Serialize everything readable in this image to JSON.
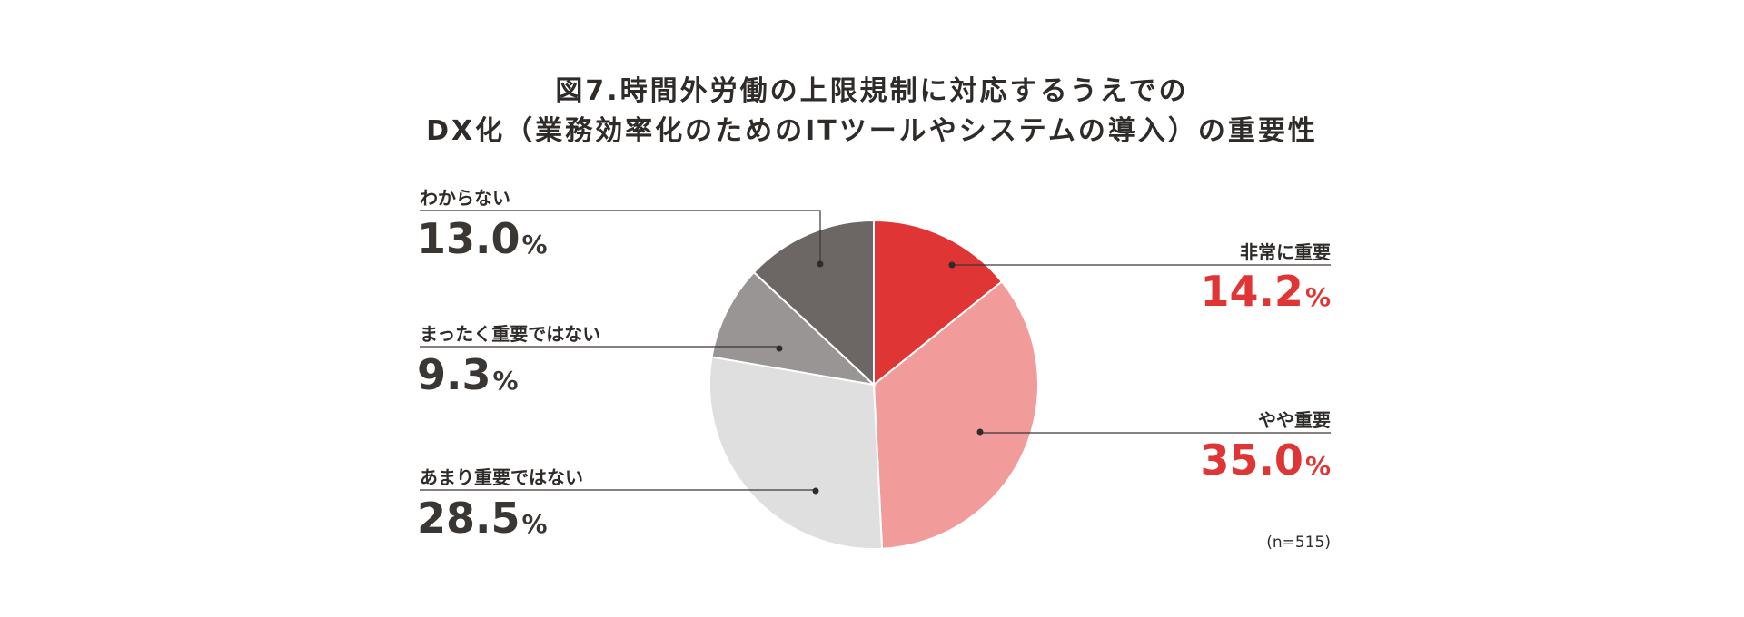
{
  "title_line1": "図7.時間外労働の上限規制に対応するうえでの",
  "title_line2": "DX化（業務効率化のためのITツールやシステムの導入）の重要性",
  "sample_note": "(n=515)",
  "percent_unit": "%",
  "chart_data": {
    "type": "pie",
    "title": "図7.時間外労働の上限規制に対応するうえでのDX化（業務効率化のためのITツールやシステムの導入）の重要性",
    "slices": [
      {
        "label": "非常に重要",
        "value": 14.2,
        "value_text": "14.2",
        "color": "#e03535"
      },
      {
        "label": "やや重要",
        "value": 35.0,
        "value_text": "35.0",
        "color": "#f29b9b"
      },
      {
        "label": "あまり重要ではない",
        "value": 28.5,
        "value_text": "28.5",
        "color": "#e0dfdf"
      },
      {
        "label": "まったく重要ではない",
        "value": 9.3,
        "value_text": "9.3",
        "color": "#989594"
      },
      {
        "label": "わからない",
        "value": 13.0,
        "value_text": "13.0",
        "color": "#6c6764"
      }
    ],
    "start": "12 o'clock",
    "direction": "clockwise",
    "label_color_important": "#e03535",
    "label_color_other": "#3a3634"
  }
}
